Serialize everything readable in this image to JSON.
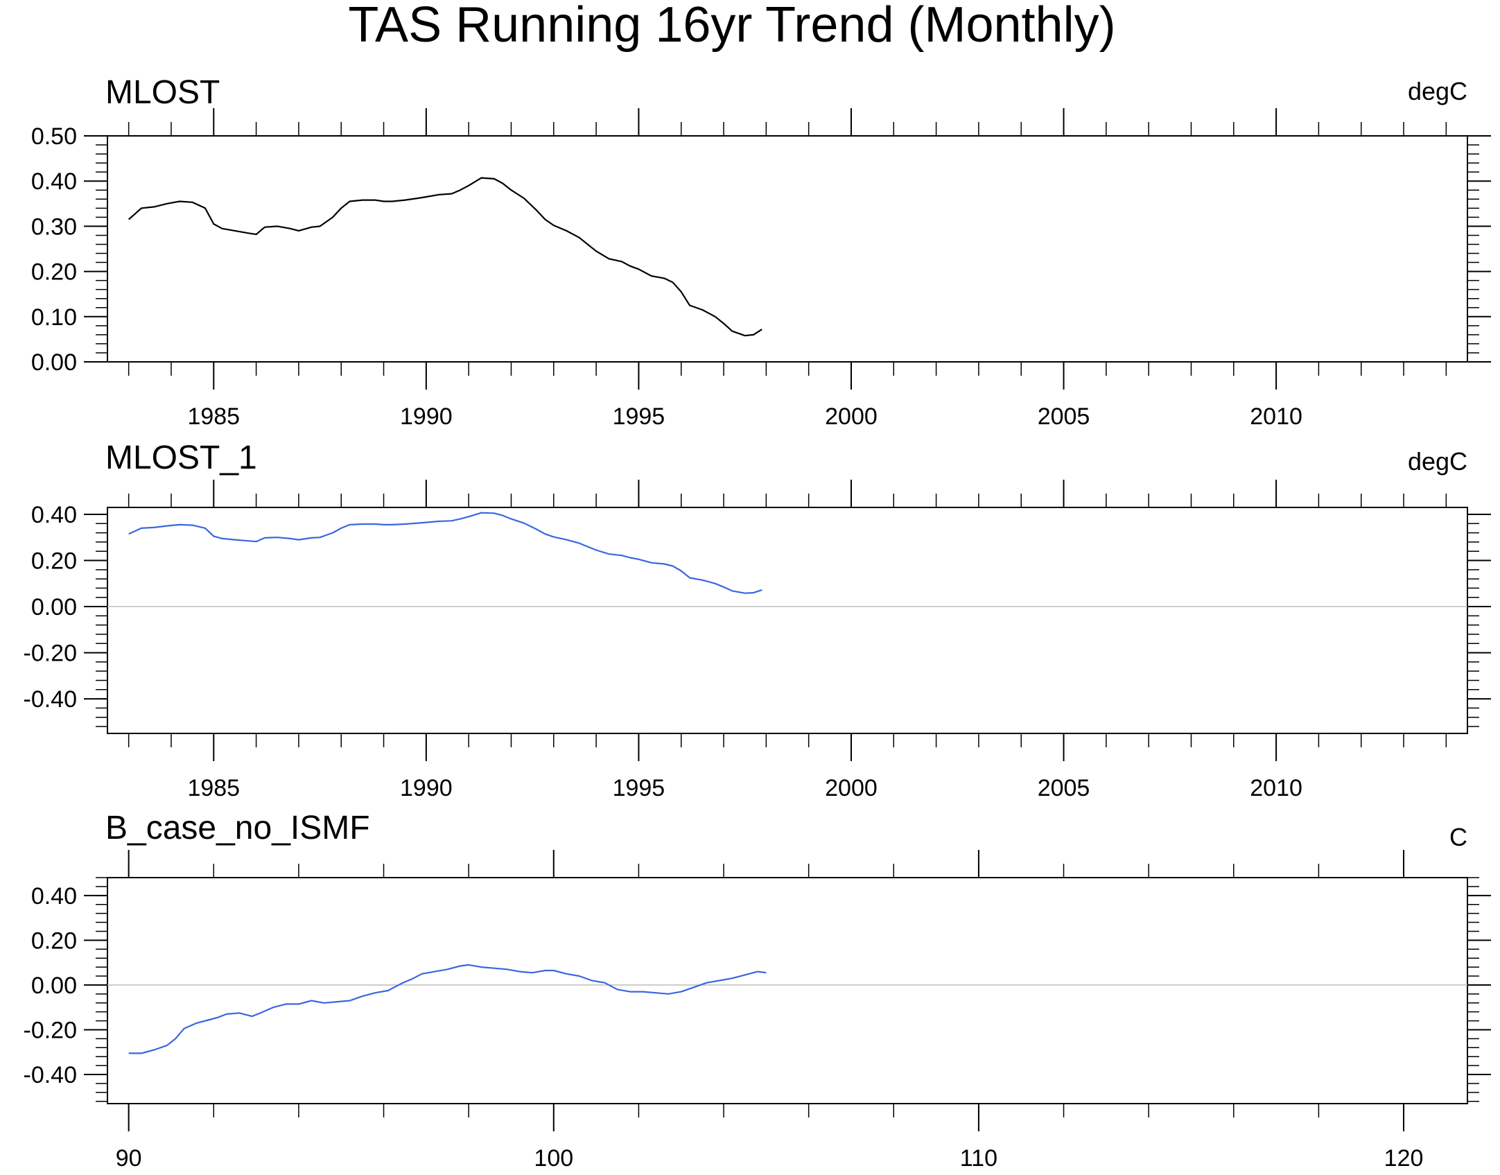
{
  "title": "TAS Running 16yr Trend (Monthly)",
  "colors": {
    "obs_line": "#000000",
    "model_line": "#3a66e0",
    "zero_line": "#bdbdbd"
  },
  "chart_data": [
    {
      "type": "line",
      "title": "MLOST",
      "units": "degC",
      "xlim": [
        1982.5,
        2014.5
      ],
      "ylim": [
        0,
        0.5
      ],
      "xticks": [
        1985,
        1990,
        1995,
        2000,
        2005,
        2010
      ],
      "xtick_labels": [
        "1985",
        "1990",
        "1995",
        "2000",
        "2005",
        "2010"
      ],
      "yticks": [
        0,
        0.1,
        0.2,
        0.3,
        0.4,
        0.5
      ],
      "ytick_labels": [
        "0.00",
        "0.10",
        "0.20",
        "0.30",
        "0.40",
        "0.50"
      ],
      "zero_line": false,
      "color": "#000000",
      "x": [
        1983.0,
        1983.3,
        1983.6,
        1983.9,
        1984.2,
        1984.5,
        1984.8,
        1985.0,
        1985.2,
        1985.5,
        1985.8,
        1986.0,
        1986.2,
        1986.5,
        1986.8,
        1987.0,
        1987.3,
        1987.5,
        1987.8,
        1988.0,
        1988.2,
        1988.5,
        1988.8,
        1989.0,
        1989.2,
        1989.5,
        1989.8,
        1990.0,
        1990.3,
        1990.6,
        1990.8,
        1991.0,
        1991.3,
        1991.6,
        1991.8,
        1992.0,
        1992.3,
        1992.6,
        1992.8,
        1993.0,
        1993.3,
        1993.6,
        1993.8,
        1994.0,
        1994.3,
        1994.6,
        1994.8,
        1995.0,
        1995.3,
        1995.6,
        1995.8,
        1996.0,
        1996.2,
        1996.5,
        1996.8,
        1997.0,
        1997.2,
        1997.5,
        1997.7,
        1997.9
      ],
      "y": [
        0.315,
        0.34,
        0.343,
        0.35,
        0.355,
        0.353,
        0.34,
        0.305,
        0.295,
        0.29,
        0.285,
        0.282,
        0.298,
        0.3,
        0.295,
        0.29,
        0.298,
        0.3,
        0.32,
        0.34,
        0.355,
        0.358,
        0.358,
        0.355,
        0.355,
        0.358,
        0.362,
        0.365,
        0.37,
        0.372,
        0.38,
        0.39,
        0.407,
        0.405,
        0.395,
        0.38,
        0.362,
        0.335,
        0.315,
        0.302,
        0.29,
        0.275,
        0.26,
        0.245,
        0.228,
        0.222,
        0.212,
        0.205,
        0.19,
        0.185,
        0.176,
        0.155,
        0.125,
        0.115,
        0.1,
        0.085,
        0.068,
        0.058,
        0.06,
        0.072
      ]
    },
    {
      "type": "line",
      "title": "MLOST_1",
      "units": "degC",
      "xlim": [
        1982.5,
        2014.5
      ],
      "ylim": [
        -0.55,
        0.43
      ],
      "xticks": [
        1985,
        1990,
        1995,
        2000,
        2005,
        2010
      ],
      "xtick_labels": [
        "1985",
        "1990",
        "1995",
        "2000",
        "2005",
        "2010"
      ],
      "yticks": [
        -0.4,
        -0.2,
        0,
        0.2,
        0.4
      ],
      "ytick_labels": [
        "-0.40",
        "-0.20",
        "0.00",
        "0.20",
        "0.40"
      ],
      "zero_line": true,
      "color": "#3a66e0",
      "x": [
        1983.0,
        1983.3,
        1983.6,
        1983.9,
        1984.2,
        1984.5,
        1984.8,
        1985.0,
        1985.2,
        1985.5,
        1985.8,
        1986.0,
        1986.2,
        1986.5,
        1986.8,
        1987.0,
        1987.3,
        1987.5,
        1987.8,
        1988.0,
        1988.2,
        1988.5,
        1988.8,
        1989.0,
        1989.2,
        1989.5,
        1989.8,
        1990.0,
        1990.3,
        1990.6,
        1990.8,
        1991.0,
        1991.3,
        1991.6,
        1991.8,
        1992.0,
        1992.3,
        1992.6,
        1992.8,
        1993.0,
        1993.3,
        1993.6,
        1993.8,
        1994.0,
        1994.3,
        1994.6,
        1994.8,
        1995.0,
        1995.3,
        1995.6,
        1995.8,
        1996.0,
        1996.2,
        1996.5,
        1996.8,
        1997.0,
        1997.2,
        1997.5,
        1997.7,
        1997.9
      ],
      "y": [
        0.315,
        0.34,
        0.343,
        0.35,
        0.355,
        0.353,
        0.34,
        0.305,
        0.295,
        0.29,
        0.285,
        0.282,
        0.298,
        0.3,
        0.295,
        0.29,
        0.298,
        0.3,
        0.32,
        0.34,
        0.355,
        0.358,
        0.358,
        0.355,
        0.355,
        0.358,
        0.362,
        0.365,
        0.37,
        0.372,
        0.38,
        0.39,
        0.407,
        0.405,
        0.395,
        0.38,
        0.362,
        0.335,
        0.315,
        0.302,
        0.29,
        0.275,
        0.26,
        0.245,
        0.228,
        0.222,
        0.212,
        0.205,
        0.19,
        0.185,
        0.176,
        0.155,
        0.125,
        0.115,
        0.1,
        0.085,
        0.068,
        0.058,
        0.06,
        0.072
      ]
    },
    {
      "type": "line",
      "title": "B_case_no_ISMF",
      "units": "C",
      "xlim": [
        89.5,
        121.5
      ],
      "ylim": [
        -0.53,
        0.48
      ],
      "xticks": [
        90,
        100,
        110,
        120
      ],
      "xtick_labels": [
        "90",
        "100",
        "110",
        "120"
      ],
      "yticks": [
        -0.4,
        -0.2,
        0,
        0.2,
        0.4
      ],
      "ytick_labels": [
        "-0.40",
        "-0.20",
        "0.00",
        "0.20",
        "0.40"
      ],
      "zero_line": true,
      "color": "#3a66e0",
      "x": [
        90.0,
        90.3,
        90.6,
        90.9,
        91.1,
        91.3,
        91.6,
        91.9,
        92.1,
        92.3,
        92.6,
        92.9,
        93.1,
        93.4,
        93.7,
        94.0,
        94.3,
        94.6,
        94.9,
        95.2,
        95.5,
        95.8,
        96.1,
        96.4,
        96.7,
        96.9,
        97.2,
        97.5,
        97.8,
        98.0,
        98.3,
        98.6,
        98.9,
        99.2,
        99.5,
        99.8,
        100.0,
        100.3,
        100.6,
        100.9,
        101.2,
        101.5,
        101.8,
        102.1,
        102.4,
        102.7,
        103.0,
        103.3,
        103.6,
        103.9,
        104.2,
        104.5,
        104.8,
        105.0
      ],
      "y": [
        -0.305,
        -0.305,
        -0.29,
        -0.27,
        -0.24,
        -0.195,
        -0.17,
        -0.155,
        -0.145,
        -0.13,
        -0.125,
        -0.14,
        -0.125,
        -0.1,
        -0.085,
        -0.085,
        -0.07,
        -0.08,
        -0.075,
        -0.07,
        -0.05,
        -0.035,
        -0.025,
        0.005,
        0.03,
        0.05,
        0.06,
        0.07,
        0.085,
        0.09,
        0.08,
        0.075,
        0.07,
        0.06,
        0.055,
        0.065,
        0.065,
        0.05,
        0.04,
        0.02,
        0.01,
        -0.02,
        -0.03,
        -0.03,
        -0.035,
        -0.04,
        -0.03,
        -0.01,
        0.01,
        0.02,
        0.03,
        0.045,
        0.06,
        0.055
      ]
    }
  ]
}
